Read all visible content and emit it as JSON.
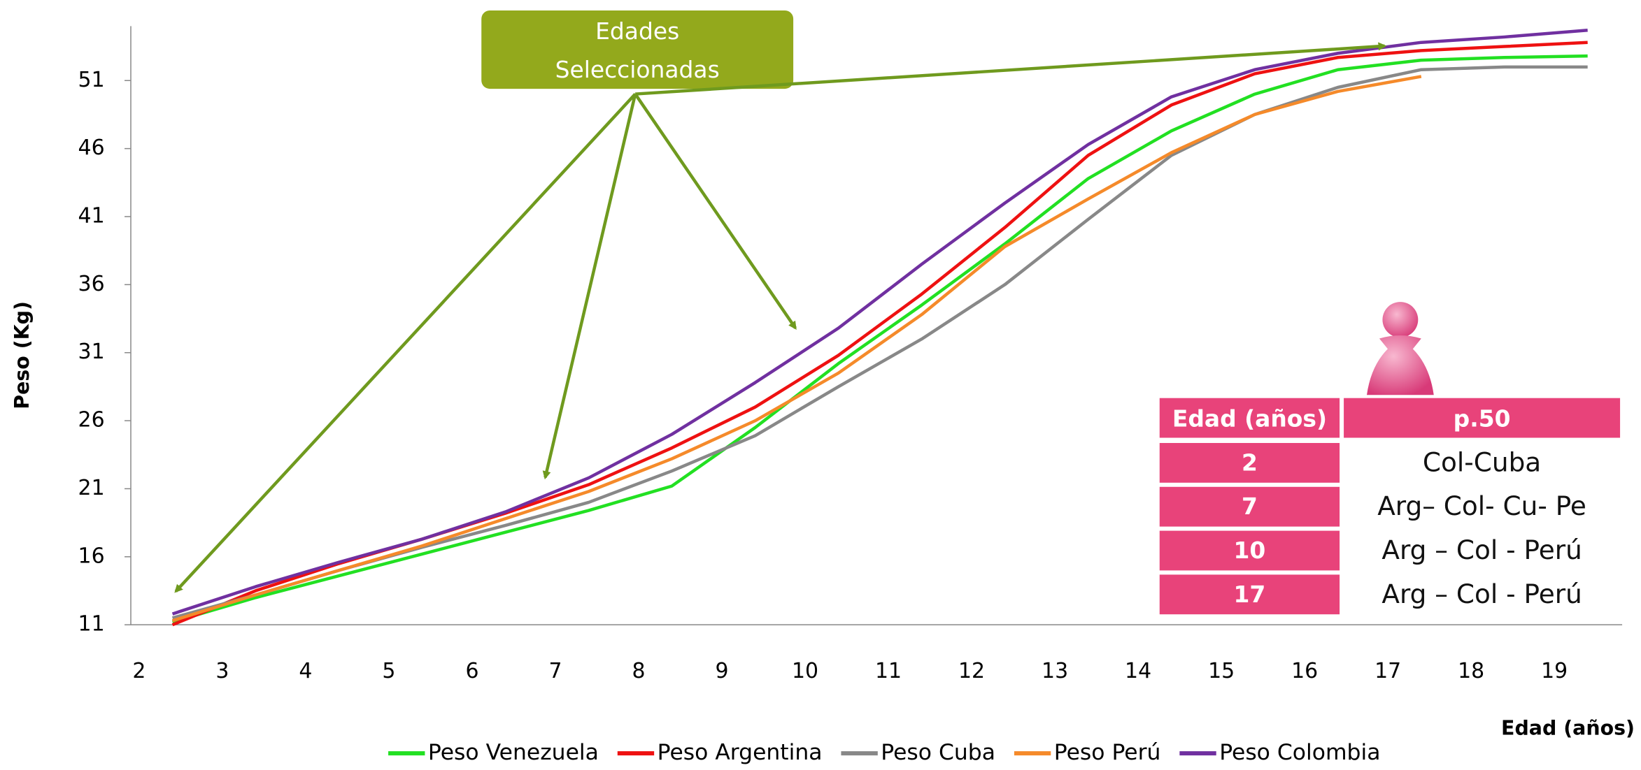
{
  "chart_data": {
    "type": "line",
    "x_label": "Edad (años)",
    "y_label": "Peso (Kg)",
    "x": [
      2.4,
      3.4,
      4.4,
      5.4,
      6.4,
      7.4,
      8.4,
      9.4,
      10.4,
      11.4,
      12.4,
      13.4,
      14.4,
      15.4,
      16.4,
      17.4,
      18.4,
      19.4
    ],
    "xlim": [
      1.9,
      19.5
    ],
    "xticks": [
      2,
      3,
      4,
      5,
      6,
      7,
      8,
      9,
      10,
      11,
      12,
      13,
      14,
      15,
      16,
      17,
      18,
      19
    ],
    "ylim": [
      11,
      55
    ],
    "yticks": [
      11,
      16,
      21,
      26,
      31,
      36,
      41,
      46,
      51
    ],
    "grid": false,
    "legend": "bottom",
    "annotation_lines": [
      "Edades",
      "Seleccionadas"
    ],
    "series": [
      {
        "name": "Peso Venezuela",
        "color": "#22e022",
        "values": [
          11.2,
          13.0,
          14.6,
          16.2,
          17.8,
          19.4,
          21.2,
          25.5,
          30.2,
          34.5,
          39.0,
          43.8,
          47.3,
          50.0,
          51.8,
          52.5,
          52.7,
          52.8
        ]
      },
      {
        "name": "Peso Argentina",
        "color": "#ee1111",
        "values": [
          11.0,
          13.5,
          15.5,
          17.3,
          19.2,
          21.3,
          24.0,
          27.0,
          30.8,
          35.3,
          40.2,
          45.5,
          49.2,
          51.5,
          52.7,
          53.2,
          53.5,
          53.8
        ]
      },
      {
        "name": "Peso Cuba",
        "color": "#888888",
        "values": [
          11.5,
          13.2,
          15.0,
          16.7,
          18.3,
          20.0,
          22.3,
          24.9,
          28.5,
          32.0,
          36.0,
          40.8,
          45.5,
          48.5,
          50.5,
          51.8,
          52.0,
          52.0
        ]
      },
      {
        "name": "Peso Perú",
        "color": "#f58a2a",
        "values": [
          11.3,
          13.2,
          15.0,
          16.8,
          18.8,
          20.8,
          23.2,
          26.0,
          29.5,
          33.8,
          38.8,
          42.3,
          45.7,
          48.5,
          50.2,
          51.3,
          null,
          null
        ]
      },
      {
        "name": "Peso Colombia",
        "color": "#7030a0",
        "values": [
          11.8,
          13.8,
          15.6,
          17.3,
          19.3,
          21.8,
          25.0,
          28.8,
          32.8,
          37.5,
          42.0,
          46.3,
          49.8,
          51.8,
          53.0,
          53.8,
          54.2,
          54.7
        ]
      }
    ]
  },
  "table": {
    "header": [
      "Edad (años)",
      "p.50"
    ],
    "rows": [
      [
        "2",
        "Col-Cuba"
      ],
      [
        "7",
        "Arg– Col- Cu- Pe"
      ],
      [
        "10",
        "Arg – Col - Perú"
      ],
      [
        "17",
        "Arg – Col - Perú"
      ]
    ]
  }
}
